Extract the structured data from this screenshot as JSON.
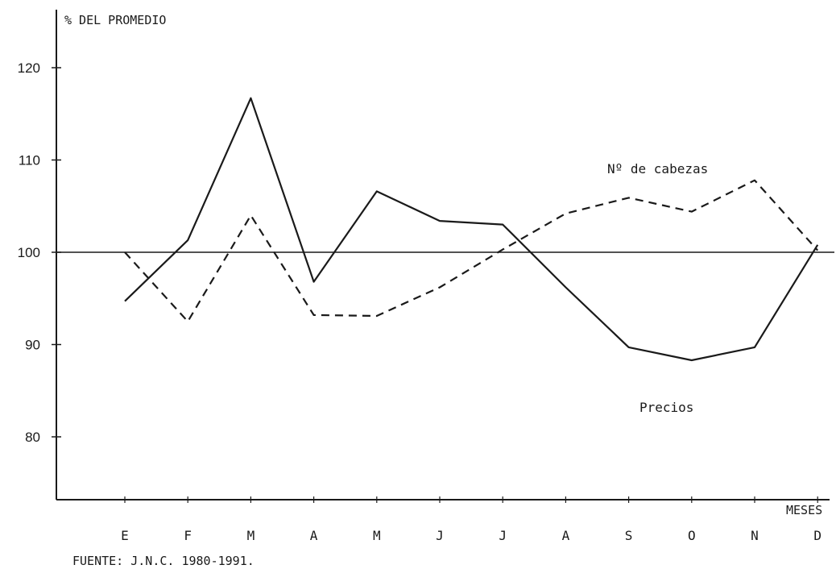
{
  "chart_data": {
    "type": "line",
    "ylabel": "% DEL PROMEDIO",
    "xlabel": "MESES",
    "categories": [
      "E",
      "F",
      "M",
      "A",
      "M",
      "J",
      "J",
      "A",
      "S",
      "O",
      "N",
      "D"
    ],
    "yticks": [
      "120",
      "110",
      "100",
      "90",
      "80"
    ],
    "ylim": [
      75,
      123
    ],
    "reference_line": 100,
    "series": [
      {
        "name": "Precios",
        "style": "solid",
        "values": [
          94.7,
          101.3,
          116.7,
          96.8,
          106.6,
          103.4,
          103.0,
          96.2,
          89.7,
          88.3,
          89.7,
          100.8
        ]
      },
      {
        "name": "Nº de cabezas",
        "style": "dashed",
        "values": [
          100.0,
          92.5,
          104.0,
          93.2,
          93.1,
          96.2,
          100.3,
          104.2,
          105.9,
          104.4,
          107.8,
          100.2
        ]
      }
    ],
    "source": "FUENTE: J.N.C. 1980-1991.",
    "legend": "labels placed next to lines",
    "grid": false
  },
  "colors": {
    "ink": "#1a1a1a",
    "background": "#ffffff"
  }
}
